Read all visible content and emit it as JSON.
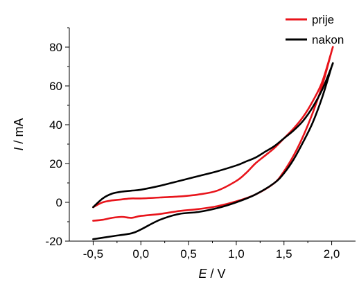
{
  "chart_data": {
    "type": "line",
    "title": "",
    "xlabel_var": "E",
    "xlabel_unit": " / V",
    "ylabel_var": "I",
    "ylabel_unit": " / mA",
    "xlim": [
      -0.75,
      2.25
    ],
    "ylim": [
      -20,
      90
    ],
    "xticks": [
      -0.5,
      0.0,
      0.5,
      1.0,
      1.5,
      2.0
    ],
    "xtick_labels": [
      "-0,5",
      "0,0",
      "0,5",
      "1,0",
      "1,5",
      "2,0"
    ],
    "yticks": [
      -20,
      0,
      20,
      40,
      60,
      80
    ],
    "ytick_labels": [
      "-20",
      "0",
      "20",
      "40",
      "60",
      "80"
    ],
    "grid": false,
    "legend_position": "top-right",
    "series": [
      {
        "name": "prije",
        "color": "#e8141b",
        "x": [
          -0.5,
          -0.4,
          -0.3,
          -0.2,
          -0.1,
          0.0,
          0.2,
          0.4,
          0.6,
          0.8,
          1.0,
          1.2,
          1.4,
          1.5,
          1.6,
          1.7,
          1.8,
          1.9,
          2.0,
          2.0,
          1.9,
          1.8,
          1.7,
          1.6,
          1.5,
          1.4,
          1.3,
          1.2,
          1.1,
          1.0,
          0.8,
          0.6,
          0.4,
          0.2,
          0.0,
          -0.1,
          -0.2,
          -0.3,
          -0.4,
          -0.5
        ],
        "y": [
          -9.5,
          -9,
          -8,
          -7.5,
          -8,
          -7,
          -6,
          -4.5,
          -3.5,
          -2,
          0.5,
          4,
          10,
          16,
          24,
          34,
          46,
          60,
          78,
          78,
          62,
          52,
          44,
          38,
          33,
          28,
          24,
          20,
          15,
          11,
          6,
          4,
          3,
          2.5,
          2,
          2,
          1.5,
          1,
          0,
          -2.5
        ]
      },
      {
        "name": "nakon",
        "color": "#000000",
        "x": [
          -0.5,
          -0.3,
          -0.1,
          0.0,
          0.2,
          0.4,
          0.6,
          0.8,
          1.0,
          1.2,
          1.4,
          1.5,
          1.6,
          1.7,
          1.8,
          1.9,
          2.0,
          2.0,
          1.9,
          1.8,
          1.7,
          1.6,
          1.5,
          1.4,
          1.3,
          1.2,
          1.1,
          1.0,
          0.8,
          0.6,
          0.4,
          0.2,
          0.0,
          -0.1,
          -0.2,
          -0.3,
          -0.4,
          -0.5
        ],
        "y": [
          -19,
          -17.5,
          -16,
          -14,
          -9,
          -6,
          -5,
          -3,
          0,
          4,
          10,
          15,
          22,
          31,
          41,
          54,
          70,
          70,
          58,
          49,
          42,
          37,
          33,
          29,
          26,
          23,
          21,
          19,
          16,
          13.5,
          11,
          8.5,
          6.5,
          6,
          5.5,
          4.5,
          2,
          -2.5
        ]
      }
    ]
  }
}
